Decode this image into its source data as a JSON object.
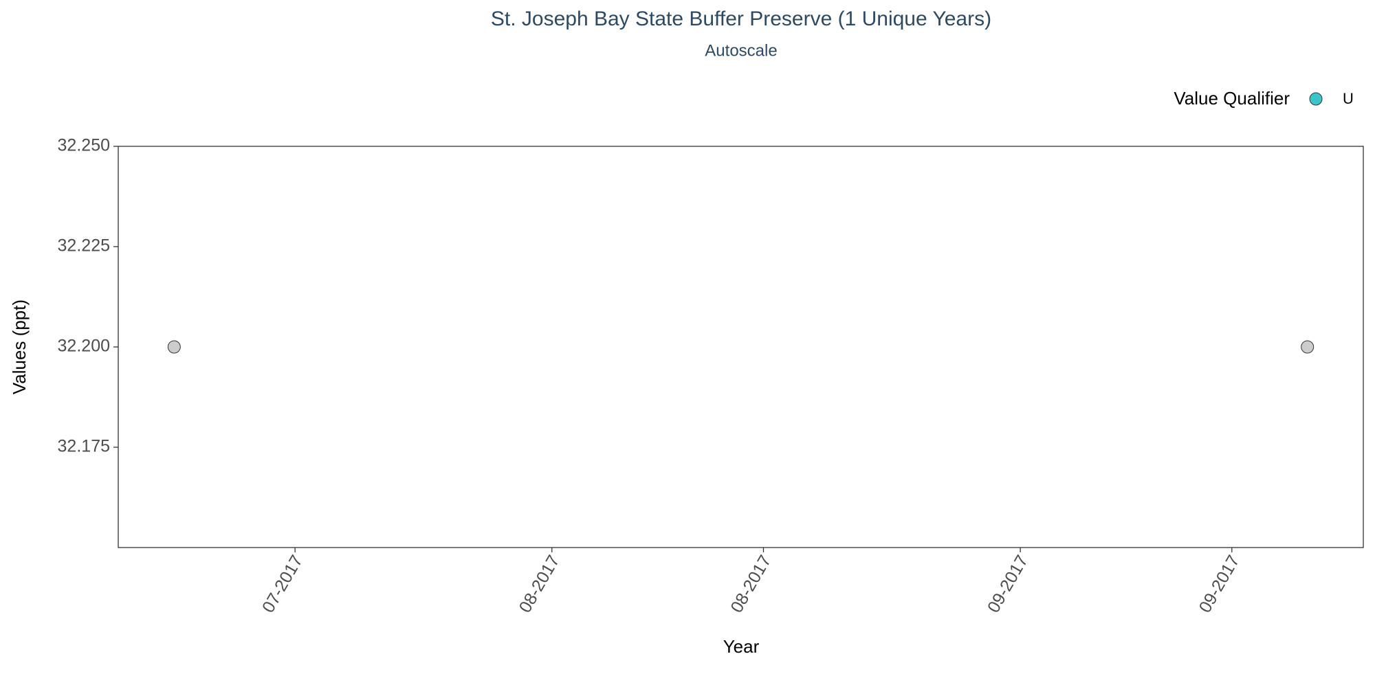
{
  "chart_data": {
    "type": "scatter",
    "title": "St. Joseph Bay State Buffer Preserve (1 Unique Years)",
    "subtitle": "Autoscale",
    "x_label": "Year",
    "y_label": "Values (ppt)",
    "legend_title": "Value Qualifier",
    "legend_position": "top-right",
    "series": [
      {
        "name": "U",
        "color": "#cccccc",
        "legend_color": "#36c5c9",
        "x": [
          188,
          263
        ],
        "values": [
          32.2,
          32.2
        ]
      }
    ],
    "xlim": [
      184.3,
      266.7
    ],
    "xticks": [
      {
        "value": 196,
        "label": "07-2017"
      },
      {
        "value": 213,
        "label": "08-2017"
      },
      {
        "value": 227,
        "label": "08-2017"
      },
      {
        "value": 244,
        "label": "09-2017"
      },
      {
        "value": 258,
        "label": "09-2017"
      }
    ],
    "ylim": [
      32.15,
      32.25
    ],
    "yticks": [
      {
        "value": 32.175,
        "label": "32.175"
      },
      {
        "value": 32.2,
        "label": "32.200"
      },
      {
        "value": 32.225,
        "label": "32.225"
      },
      {
        "value": 32.25,
        "label": "32.250"
      }
    ],
    "grid": false
  }
}
